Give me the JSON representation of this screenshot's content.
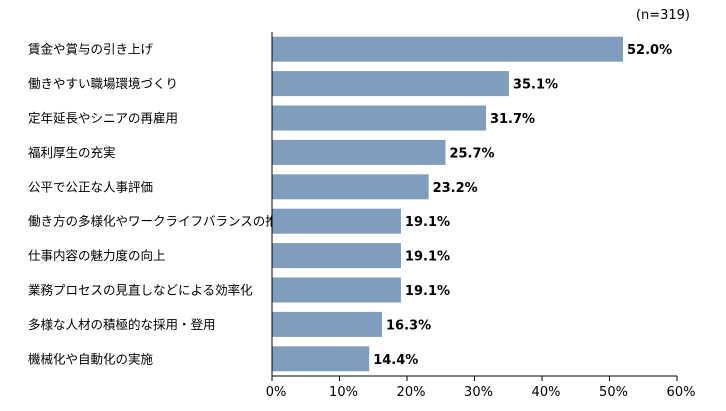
{
  "chart_data": {
    "type": "bar",
    "orientation": "horizontal",
    "note": "(n=319)",
    "title": "",
    "xlabel": "",
    "ylabel": "",
    "xlim": [
      0,
      60
    ],
    "ticks": [
      "0%",
      "10%",
      "20%",
      "30%",
      "40%",
      "50%",
      "60%"
    ],
    "tick_values": [
      0,
      10,
      20,
      30,
      40,
      50,
      60
    ],
    "grid": false,
    "bar_color": "#7f9dbf",
    "categories": [
      "賃金や賞与の引き上げ",
      "働きやすい職場環境づくり",
      "定年延長やシニアの再雇用",
      "福利厚生の充実",
      "公平で公正な人事評価",
      "働き方の多様化やワークライフバランスの推進",
      "仕事内容の魅力度の向上",
      "業務プロセスの見直しなどによる効率化",
      "多様な人材の積極的な採用・登用",
      "機械化や自動化の実施"
    ],
    "values": [
      52.0,
      35.1,
      31.7,
      25.7,
      23.2,
      19.1,
      19.1,
      19.1,
      16.3,
      14.4
    ],
    "value_labels": [
      "52.0%",
      "35.1%",
      "31.7%",
      "25.7%",
      "23.2%",
      "19.1%",
      "19.1%",
      "19.1%",
      "16.3%",
      "14.4%"
    ]
  }
}
